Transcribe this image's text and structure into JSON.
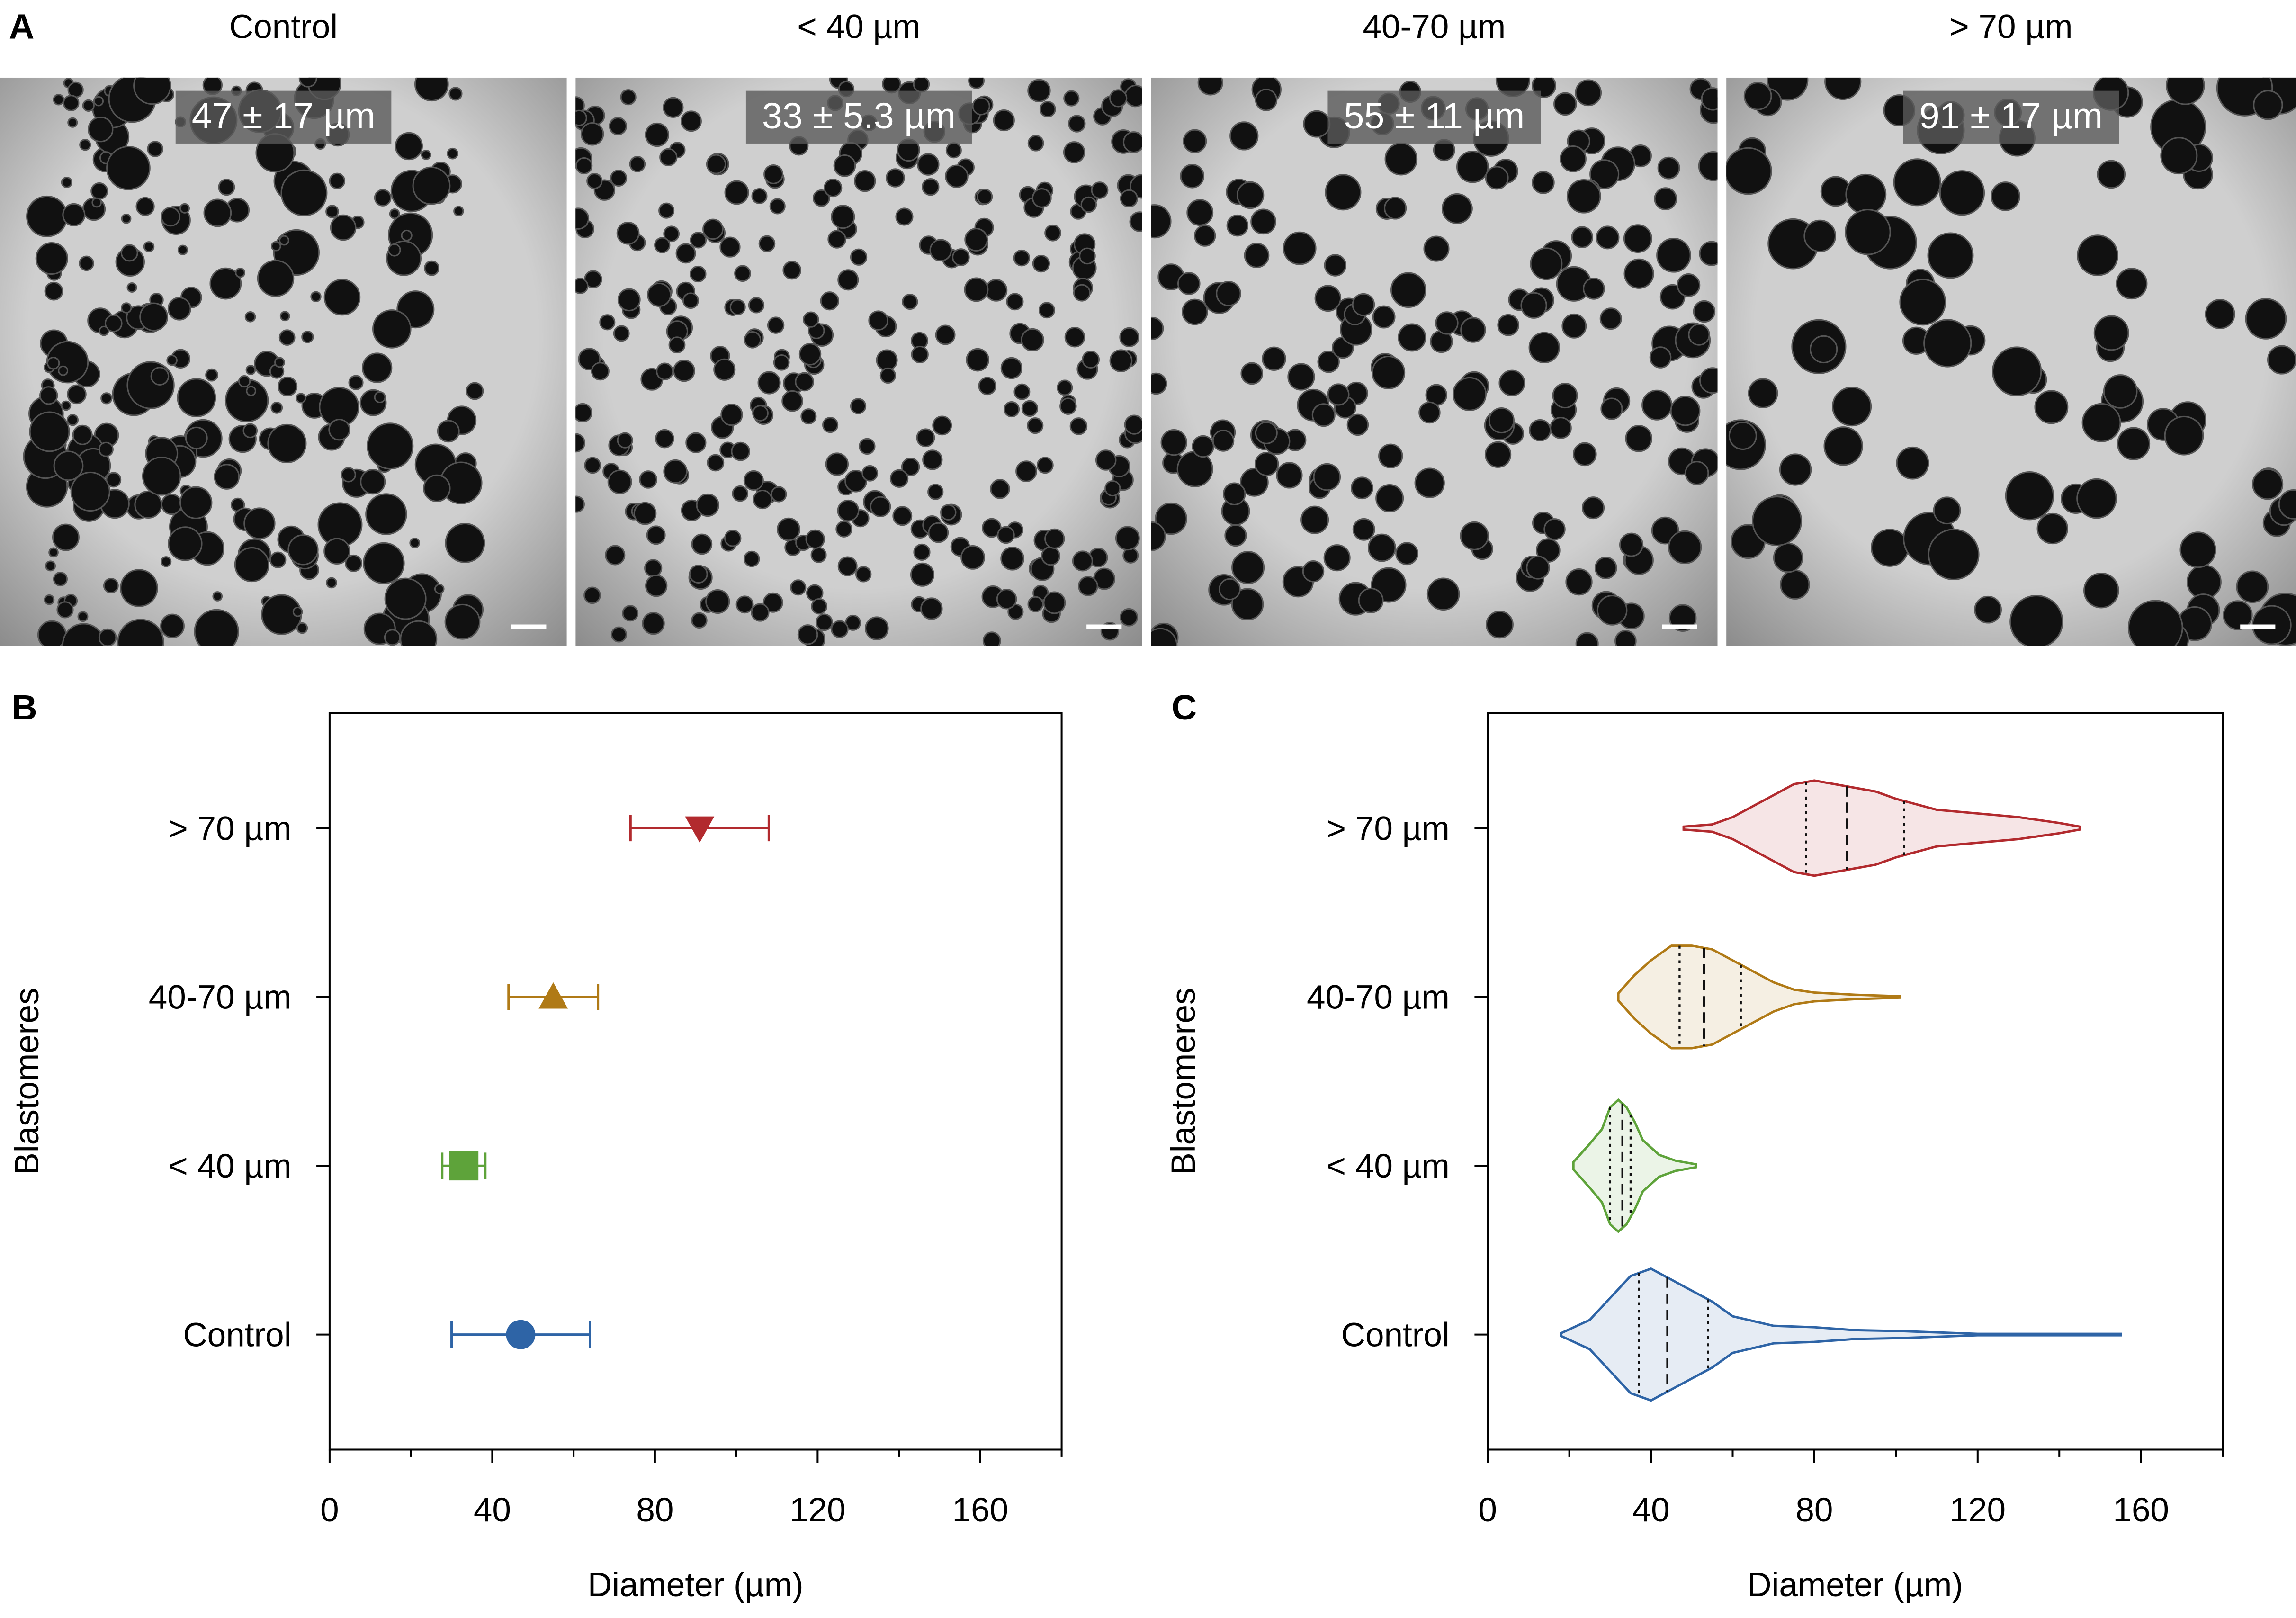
{
  "panel_a": {
    "label": "A",
    "images": [
      {
        "title": "Control",
        "caption": "47 ± 17 µm"
      },
      {
        "title": "< 40 µm",
        "caption": "33 ± 5.3 µm"
      },
      {
        "title": "40-70 µm",
        "caption": "55 ± 11 µm"
      },
      {
        "title": "> 70 µm",
        "caption": "91 ± 17 µm"
      }
    ]
  },
  "chart_data": [
    {
      "type": "errorbar",
      "panel_label": "B",
      "categories": [
        "Control",
        "< 40 µm",
        "40-70 µm",
        "> 70 µm"
      ],
      "values": [
        47,
        33,
        55,
        91
      ],
      "errors": [
        17,
        5.3,
        11,
        17
      ],
      "colors": [
        "#2e64a6",
        "#5ea33a",
        "#b07a16",
        "#b22a2e"
      ],
      "markers": [
        "circle",
        "square",
        "triangle-up",
        "triangle-down"
      ],
      "xlim": [
        0,
        180
      ],
      "xticks": [
        0,
        40,
        80,
        120,
        160
      ],
      "xminor_ticks": [
        20,
        60,
        100,
        140,
        180
      ],
      "xlabel": "Diameter (µm)",
      "ylabel": "Blastomeres"
    },
    {
      "type": "violin",
      "panel_label": "C",
      "categories": [
        "Control",
        "< 40 µm",
        "40-70 µm",
        "> 70 µm"
      ],
      "violins": [
        {
          "color": "#2e64a6",
          "kde_x": [
            18,
            25,
            30,
            35,
            40,
            45,
            50,
            55,
            60,
            70,
            80,
            90,
            100,
            110,
            120,
            130,
            140,
            155
          ],
          "kde_width": [
            0.02,
            0.2,
            0.5,
            0.8,
            0.9,
            0.75,
            0.6,
            0.45,
            0.25,
            0.12,
            0.1,
            0.06,
            0.05,
            0.03,
            0.01,
            0.01,
            0.01,
            0.01
          ],
          "quartiles": [
            37,
            44,
            54
          ]
        },
        {
          "color": "#5ea33a",
          "kde_x": [
            21,
            25,
            28,
            30,
            32,
            34,
            36,
            38,
            42,
            46,
            51
          ],
          "kde_width": [
            0.05,
            0.3,
            0.5,
            0.8,
            0.9,
            0.8,
            0.6,
            0.35,
            0.15,
            0.07,
            0.02
          ],
          "quartiles": [
            30,
            33,
            35
          ]
        },
        {
          "color": "#b07a16",
          "kde_x": [
            32,
            36,
            40,
            45,
            50,
            55,
            60,
            65,
            70,
            75,
            80,
            90,
            101
          ],
          "kde_width": [
            0.05,
            0.3,
            0.5,
            0.7,
            0.7,
            0.65,
            0.5,
            0.35,
            0.2,
            0.1,
            0.06,
            0.03,
            0.01
          ],
          "quartiles": [
            47,
            53,
            62
          ]
        },
        {
          "color": "#b22a2e",
          "kde_x": [
            48,
            55,
            60,
            65,
            70,
            75,
            80,
            85,
            90,
            95,
            100,
            110,
            120,
            130,
            140,
            145
          ],
          "kde_width": [
            0.02,
            0.05,
            0.15,
            0.3,
            0.45,
            0.6,
            0.65,
            0.6,
            0.55,
            0.5,
            0.4,
            0.25,
            0.2,
            0.15,
            0.07,
            0.02
          ],
          "quartiles": [
            78,
            88,
            102
          ]
        }
      ],
      "xlim": [
        0,
        180
      ],
      "xticks": [
        0,
        40,
        80,
        120,
        160
      ],
      "xminor_ticks": [
        20,
        60,
        100,
        140,
        180
      ],
      "xlabel": "Diameter (µm)",
      "ylabel": "Blastomeres"
    }
  ]
}
